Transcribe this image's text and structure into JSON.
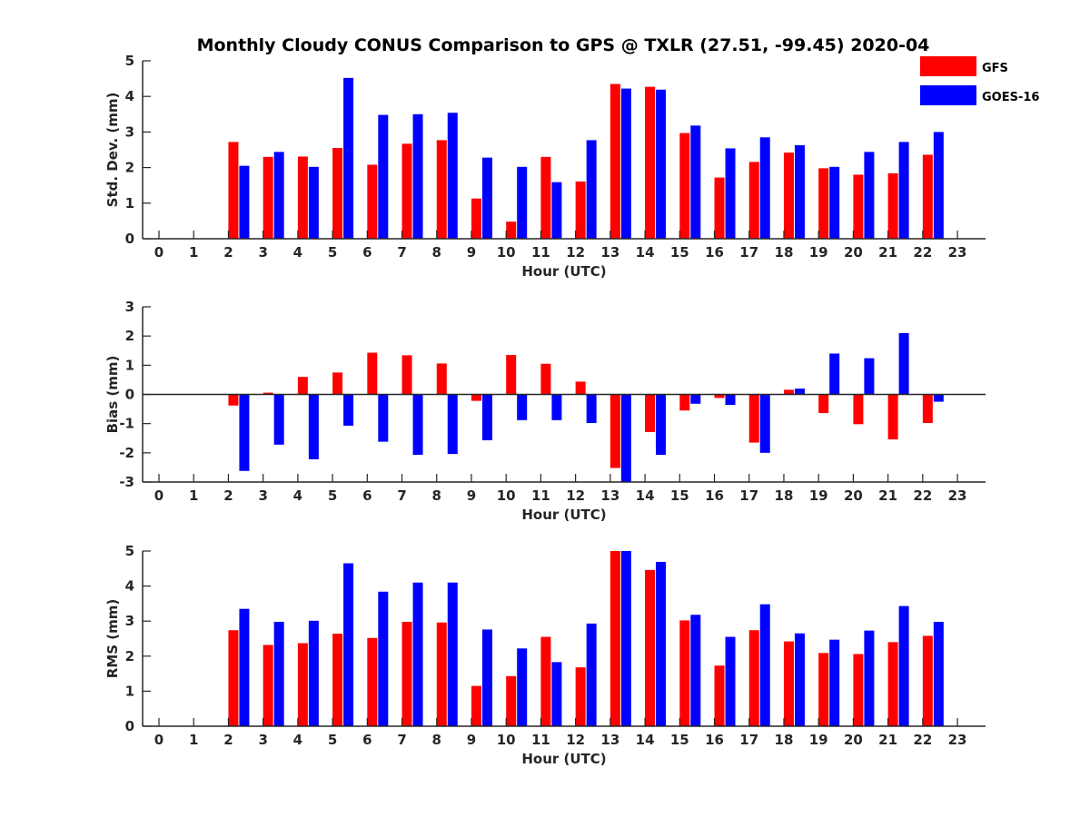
{
  "title": "Monthly Cloudy CONUS Comparison to GPS @ TXLR (27.51, -99.45) 2020-04",
  "legend": {
    "placement": "top-right",
    "entries": [
      {
        "label": "GFS",
        "color": "#ff0000"
      },
      {
        "label": "GOES-16",
        "color": "#0000ff"
      }
    ]
  },
  "chart_data": [
    {
      "type": "bar",
      "xlabel": "Hour (UTC)",
      "ylabel": "Std. Dev. (mm)",
      "ylim": [
        0,
        5
      ],
      "yticks": [
        0,
        1,
        2,
        3,
        4,
        5
      ],
      "grid": false,
      "categories": [
        0,
        1,
        2,
        3,
        4,
        5,
        6,
        7,
        8,
        9,
        10,
        11,
        12,
        13,
        14,
        15,
        16,
        17,
        18,
        19,
        20,
        21,
        22,
        23
      ],
      "series": [
        {
          "name": "GFS",
          "color": "#ff0000",
          "values": [
            null,
            null,
            2.72,
            2.3,
            2.31,
            2.55,
            2.08,
            2.67,
            2.77,
            1.13,
            0.48,
            2.3,
            1.61,
            4.35,
            4.27,
            2.97,
            1.72,
            2.16,
            2.42,
            1.98,
            1.8,
            1.84,
            2.36,
            null
          ]
        },
        {
          "name": "GOES-16",
          "color": "#0000ff",
          "values": [
            null,
            null,
            2.05,
            2.44,
            2.02,
            4.52,
            3.48,
            3.5,
            3.54,
            2.28,
            2.02,
            1.59,
            2.77,
            4.22,
            4.19,
            3.18,
            2.54,
            2.85,
            2.63,
            2.02,
            2.44,
            2.72,
            3.0,
            null
          ]
        }
      ]
    },
    {
      "type": "bar",
      "xlabel": "Hour (UTC)",
      "ylabel": "Bias (mm)",
      "ylim": [
        -3,
        3
      ],
      "yticks": [
        -3,
        -2,
        -1,
        0,
        1,
        2,
        3
      ],
      "grid": false,
      "categories": [
        0,
        1,
        2,
        3,
        4,
        5,
        6,
        7,
        8,
        9,
        10,
        11,
        12,
        13,
        14,
        15,
        16,
        17,
        18,
        19,
        20,
        21,
        22,
        23
      ],
      "series": [
        {
          "name": "GFS",
          "color": "#ff0000",
          "values": [
            null,
            null,
            -0.38,
            0.06,
            0.6,
            0.75,
            1.43,
            1.34,
            1.06,
            -0.22,
            1.35,
            1.05,
            0.44,
            -2.52,
            -1.29,
            -0.55,
            -0.12,
            -1.65,
            0.16,
            -0.64,
            -1.02,
            -1.54,
            -0.98,
            null
          ]
        },
        {
          "name": "GOES-16",
          "color": "#0000ff",
          "values": [
            null,
            null,
            -2.62,
            -1.72,
            -2.22,
            -1.07,
            -1.62,
            -2.07,
            -2.04,
            -1.57,
            -0.88,
            -0.88,
            -0.98,
            -3.0,
            -2.07,
            -0.32,
            -0.36,
            -2.0,
            0.2,
            1.4,
            1.24,
            2.1,
            -0.25,
            null
          ]
        }
      ]
    },
    {
      "type": "bar",
      "xlabel": "Hour (UTC)",
      "ylabel": "RMS (mm)",
      "ylim": [
        0,
        5
      ],
      "yticks": [
        0,
        1,
        2,
        3,
        4,
        5
      ],
      "grid": false,
      "categories": [
        0,
        1,
        2,
        3,
        4,
        5,
        6,
        7,
        8,
        9,
        10,
        11,
        12,
        13,
        14,
        15,
        16,
        17,
        18,
        19,
        20,
        21,
        22,
        23
      ],
      "series": [
        {
          "name": "GFS",
          "color": "#ff0000",
          "values": [
            null,
            null,
            2.74,
            2.32,
            2.37,
            2.64,
            2.52,
            2.98,
            2.96,
            1.15,
            1.43,
            2.55,
            1.68,
            5.0,
            4.46,
            3.02,
            1.73,
            2.74,
            2.42,
            2.09,
            2.06,
            2.4,
            2.58,
            null
          ]
        },
        {
          "name": "GOES-16",
          "color": "#0000ff",
          "values": [
            null,
            null,
            3.35,
            2.98,
            3.01,
            4.65,
            3.84,
            4.1,
            4.1,
            2.76,
            2.22,
            1.83,
            2.93,
            5.0,
            4.69,
            3.18,
            2.55,
            3.48,
            2.65,
            2.47,
            2.73,
            3.43,
            2.98,
            null
          ]
        }
      ]
    }
  ]
}
